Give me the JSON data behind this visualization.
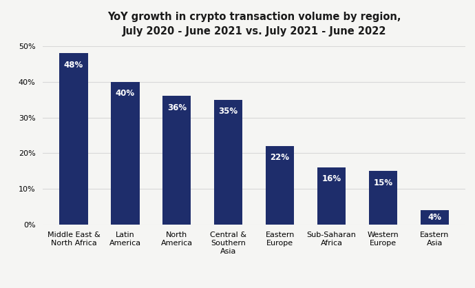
{
  "title_line1": "YoY growth in crypto transaction volume by region,",
  "title_line2": "July 2020 - June 2021 vs. July 2021 - June 2022",
  "categories": [
    "Middle East &\nNorth Africa",
    "Latin\nAmerica",
    "North\nAmerica",
    "Central &\nSouthern\nAsia",
    "Eastern\nEurope",
    "Sub-Saharan\nAfrica",
    "Western\nEurope",
    "Eastern\nAsia"
  ],
  "values": [
    48,
    40,
    36,
    35,
    22,
    16,
    15,
    4
  ],
  "bar_color": "#1e2d6b",
  "label_color": "#ffffff",
  "background_color": "#f5f5f3",
  "grid_color": "#d8d8d8",
  "ylim": [
    0,
    50
  ],
  "yticks": [
    0,
    10,
    20,
    30,
    40,
    50
  ],
  "title_fontsize": 10.5,
  "label_fontsize": 8.5,
  "tick_fontsize": 8
}
